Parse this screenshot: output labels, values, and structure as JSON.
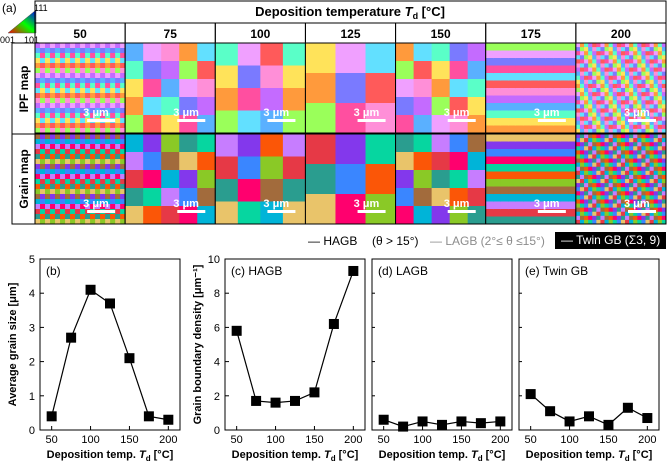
{
  "figure": {
    "panel_a_label": "(a)",
    "ipf_key": {
      "top": "111",
      "left": "001",
      "right": "101"
    },
    "header_title": "Deposition temperature ",
    "header_symbol": "T",
    "header_sub": "d",
    "header_unit": " [°C]",
    "temperatures": [
      "50",
      "75",
      "100",
      "125",
      "150",
      "175",
      "200"
    ],
    "row_labels": [
      "IPF map",
      "Grain map"
    ],
    "scale_bar_label": "3 μm",
    "legend": {
      "hagb": "— HAGB",
      "hagb_cond": "(θ > 15°)",
      "lagb": "— LAGB (2°≤ θ ≤15°)",
      "twin": "— Twin GB  (Σ3, 9)"
    }
  },
  "colors": {
    "hagb": "#000000",
    "lagb": "#a0a0a0",
    "twin_bg": "#000000",
    "twin_text": "#ffffff"
  },
  "chart_data": [
    {
      "type": "line",
      "panel": "(b)",
      "title": "",
      "xlabel": "Deposition temp. ",
      "xlabel_symbol": "T",
      "xlabel_sub": "d",
      "xlabel_unit": " [°C]",
      "ylabel": "Average grain size [μm]",
      "x": [
        50,
        75,
        100,
        125,
        150,
        175,
        200
      ],
      "values": [
        0.4,
        2.7,
        4.1,
        3.7,
        2.1,
        0.4,
        0.3
      ],
      "xlim": [
        35,
        215
      ],
      "ylim": [
        0,
        5
      ],
      "xticks": [
        50,
        100,
        150,
        200
      ],
      "yticks": [
        0,
        1,
        2,
        3,
        4,
        5
      ]
    },
    {
      "type": "line",
      "panel": "(c) HAGB",
      "title": "",
      "xlabel": "Deposition temp. ",
      "xlabel_symbol": "T",
      "xlabel_sub": "d",
      "xlabel_unit": " [°C]",
      "ylabel": "Grain boundary density [μm⁻¹]",
      "x": [
        50,
        75,
        100,
        125,
        150,
        175,
        200
      ],
      "values": [
        5.8,
        1.7,
        1.6,
        1.7,
        2.2,
        6.2,
        9.3
      ],
      "xlim": [
        35,
        215
      ],
      "ylim": [
        0,
        10
      ],
      "xticks": [
        50,
        100,
        150,
        200
      ],
      "yticks": [
        0,
        2,
        4,
        6,
        8,
        10
      ]
    },
    {
      "type": "line",
      "panel": "(d) LAGB",
      "title": "",
      "xlabel": "Deposition temp. ",
      "xlabel_symbol": "T",
      "xlabel_sub": "d",
      "xlabel_unit": " [°C]",
      "ylabel": "",
      "x": [
        50,
        75,
        100,
        125,
        150,
        175,
        200
      ],
      "values": [
        0.6,
        0.2,
        0.5,
        0.3,
        0.5,
        0.4,
        0.5
      ],
      "xlim": [
        35,
        215
      ],
      "ylim": [
        0,
        10
      ],
      "xticks": [
        50,
        100,
        150,
        200
      ],
      "yticks": []
    },
    {
      "type": "line",
      "panel": "(e) Twin GB",
      "title": "",
      "xlabel": "Deposition temp. ",
      "xlabel_symbol": "T",
      "xlabel_sub": "d",
      "xlabel_unit": " [°C]",
      "ylabel": "",
      "x": [
        50,
        75,
        100,
        125,
        150,
        175,
        200
      ],
      "values": [
        2.1,
        1.1,
        0.5,
        0.8,
        0.3,
        1.3,
        0.7
      ],
      "xlim": [
        35,
        215
      ],
      "ylim": [
        0,
        10
      ],
      "xticks": [
        50,
        100,
        150,
        200
      ],
      "yticks": []
    }
  ]
}
